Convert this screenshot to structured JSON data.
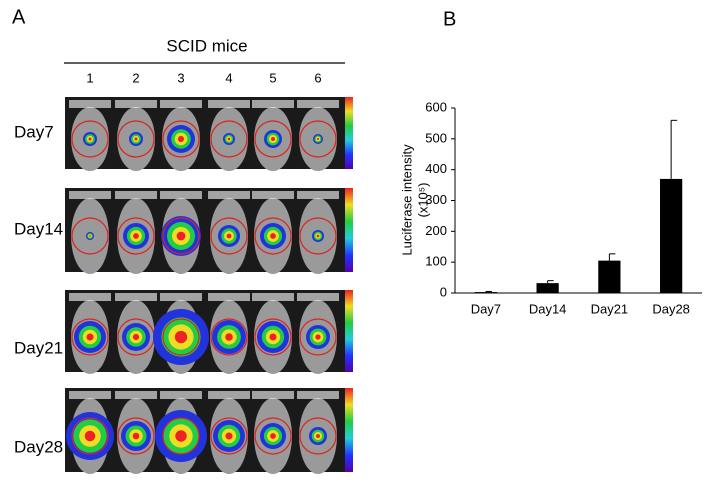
{
  "panel_a": {
    "label": "A",
    "title": "SCID mice",
    "columns": [
      "1",
      "2",
      "3",
      "4",
      "5",
      "6"
    ],
    "rows": [
      "Day7",
      "Day14",
      "Day21",
      "Day28"
    ]
  },
  "panel_b_label": "B",
  "chart_data": {
    "type": "bar",
    "y_label": "Luciferase intensity",
    "y_unit": "(x10⁵)",
    "categories": [
      "Day7",
      "Day14",
      "Day21",
      "Day28"
    ],
    "values": [
      3,
      32,
      105,
      370
    ],
    "errors": [
      2,
      8,
      22,
      190
    ],
    "color": "#000000",
    "ylim": [
      0,
      600
    ],
    "yticks": [
      0,
      100,
      200,
      300,
      400,
      500,
      600
    ]
  }
}
